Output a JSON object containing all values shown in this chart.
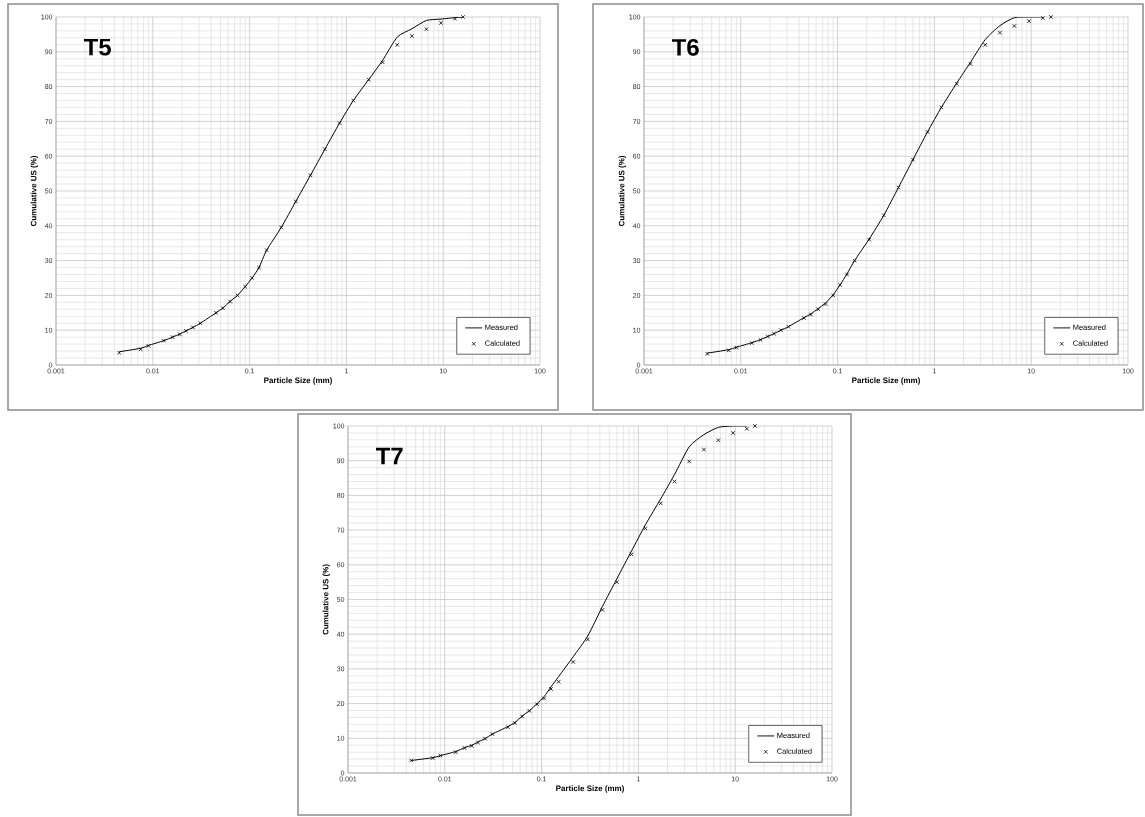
{
  "chart_data": [
    {
      "type": "scatter",
      "title": "T5",
      "xlabel": "Particle Size (mm)",
      "ylabel": "Cumulative US (%)",
      "log": "x",
      "grid": true,
      "legend": "bottom right",
      "xlim": [
        0.001,
        100
      ],
      "ylim": [
        0,
        100
      ],
      "xticks": [
        0.001,
        0.01,
        0.1,
        1,
        10,
        100
      ],
      "yticks": [
        0,
        10,
        20,
        30,
        40,
        50,
        60,
        70,
        80,
        90,
        100
      ],
      "x": [
        0.0045,
        0.0075,
        0.009,
        0.013,
        0.016,
        0.019,
        0.022,
        0.026,
        0.031,
        0.045,
        0.053,
        0.063,
        0.075,
        0.09,
        0.106,
        0.125,
        0.15,
        0.212,
        0.3,
        0.425,
        0.6,
        0.85,
        1.18,
        1.7,
        2.36,
        3.35,
        4.75,
        6.7,
        9.5,
        13.2,
        16
      ],
      "series": [
        {
          "name": "Measured",
          "type": "line",
          "color": "#000000",
          "marker": "none",
          "line_style": "solid",
          "values": [
            3.8,
            4.8,
            5.6,
            7.0,
            8.0,
            8.9,
            9.8,
            10.8,
            12.0,
            15.0,
            16.4,
            18.3,
            20.0,
            22.5,
            25.0,
            28.0,
            33.0,
            39.5,
            47.0,
            54.5,
            62.0,
            69.5,
            76.0,
            82.0,
            87.5,
            94.2,
            96.6,
            99.0,
            99.4,
            99.8,
            100
          ]
        },
        {
          "name": "Calculated",
          "color": "#000000",
          "marker": "cross",
          "values": [
            3.5,
            4.5,
            5.5,
            7.0,
            8.0,
            8.8,
            9.8,
            10.8,
            12.0,
            15.0,
            16.3,
            18.2,
            20.0,
            22.5,
            25.0,
            28.0,
            33.0,
            39.5,
            47.0,
            54.5,
            62.0,
            69.5,
            76.0,
            82.0,
            87.0,
            92.0,
            94.5,
            96.5,
            98.3,
            99.5,
            100
          ]
        }
      ]
    },
    {
      "type": "scatter",
      "title": "T6",
      "xlabel": "Particle Size (mm)",
      "ylabel": "Cumulative US (%)",
      "log": "x",
      "grid": true,
      "legend": "bottom right",
      "xlim": [
        0.001,
        100
      ],
      "ylim": [
        0,
        100
      ],
      "xticks": [
        0.001,
        0.01,
        0.1,
        1,
        10,
        100
      ],
      "yticks": [
        0,
        10,
        20,
        30,
        40,
        50,
        60,
        70,
        80,
        90,
        100
      ],
      "x": [
        0.0045,
        0.0075,
        0.009,
        0.013,
        0.016,
        0.019,
        0.022,
        0.026,
        0.031,
        0.045,
        0.053,
        0.063,
        0.075,
        0.09,
        0.106,
        0.125,
        0.15,
        0.212,
        0.3,
        0.425,
        0.6,
        0.85,
        1.18,
        1.7,
        2.36,
        3.35,
        4.75,
        6.7,
        9.5,
        13.2,
        16
      ],
      "series": [
        {
          "name": "Measured",
          "type": "line",
          "color": "#000000",
          "marker": "none",
          "line_style": "solid",
          "values": [
            3.4,
            4.4,
            5.1,
            6.4,
            7.3,
            8.2,
            9.0,
            10.0,
            11.0,
            13.6,
            14.7,
            16.2,
            17.8,
            20.2,
            23.0,
            26.2,
            30.0,
            36.2,
            43.0,
            51.0,
            59.0,
            67.0,
            74.0,
            81.0,
            87.0,
            93.5,
            97.5,
            99.8,
            100,
            100,
            null
          ]
        },
        {
          "name": "Calculated",
          "color": "#000000",
          "marker": "cross",
          "values": [
            3.2,
            4.2,
            5.0,
            6.3,
            7.2,
            8.2,
            9.0,
            10.0,
            11.0,
            13.5,
            14.5,
            16.0,
            17.5,
            20.0,
            23.0,
            26.0,
            30.0,
            36.0,
            43.0,
            51.0,
            59.0,
            67.0,
            74.0,
            80.8,
            86.5,
            92.0,
            95.5,
            97.4,
            98.8,
            99.7,
            100
          ]
        }
      ]
    },
    {
      "type": "scatter",
      "title": "T7",
      "xlabel": "Particle Size (mm)",
      "ylabel": "Cumulative US (%)",
      "log": "x",
      "grid": true,
      "legend": "bottom right",
      "xlim": [
        0.001,
        100
      ],
      "ylim": [
        0,
        100
      ],
      "xticks": [
        0.001,
        0.01,
        0.1,
        1,
        10,
        100
      ],
      "yticks": [
        0,
        10,
        20,
        30,
        40,
        50,
        60,
        70,
        80,
        90,
        100
      ],
      "x": [
        0.0045,
        0.0075,
        0.009,
        0.013,
        0.016,
        0.019,
        0.022,
        0.026,
        0.031,
        0.045,
        0.053,
        0.063,
        0.075,
        0.09,
        0.106,
        0.125,
        0.15,
        0.212,
        0.3,
        0.425,
        0.6,
        0.85,
        1.18,
        1.7,
        2.36,
        3.35,
        4.75,
        6.7,
        9.5,
        13.2,
        16
      ],
      "series": [
        {
          "name": "Measured",
          "type": "line",
          "color": "#000000",
          "marker": "none",
          "line_style": "solid",
          "values": [
            3.6,
            4.4,
            5.0,
            6.2,
            7.3,
            8.0,
            8.9,
            9.9,
            11.2,
            13.4,
            14.6,
            16.4,
            18.0,
            20.0,
            22.0,
            24.8,
            27.8,
            33.5,
            39.5,
            48.0,
            56.0,
            64.0,
            71.5,
            79.0,
            86.0,
            94.0,
            97.5,
            99.6,
            100,
            100,
            null
          ]
        },
        {
          "name": "Calculated",
          "color": "#000000",
          "marker": "cross",
          "values": [
            3.6,
            4.3,
            5.0,
            6.0,
            7.2,
            7.8,
            8.8,
            9.9,
            11.2,
            13.2,
            14.4,
            16.3,
            17.9,
            19.8,
            21.5,
            24.2,
            26.3,
            32.0,
            38.5,
            47.0,
            55.0,
            63.0,
            70.5,
            77.7,
            84.0,
            89.8,
            93.2,
            95.9,
            98.0,
            99.2,
            100
          ]
        }
      ]
    }
  ]
}
